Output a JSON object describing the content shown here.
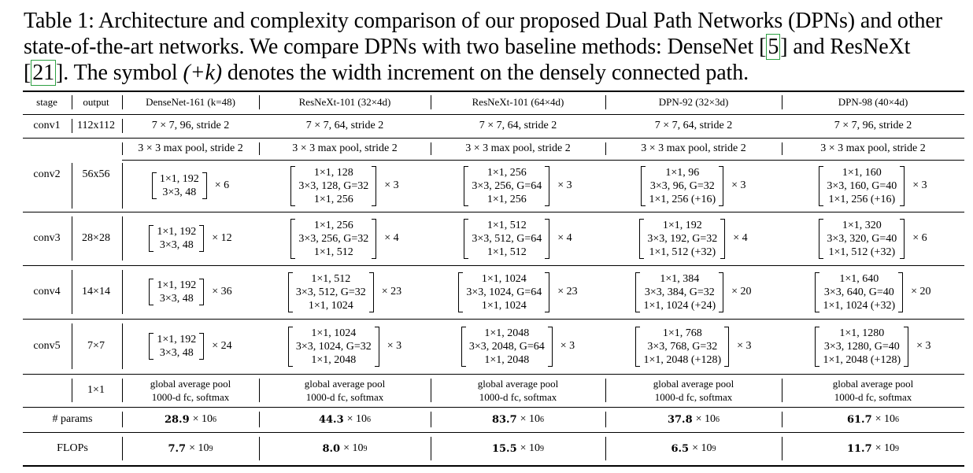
{
  "caption": {
    "part1": "Table 1: Architecture and complexity comparison of our proposed Dual Path Networks (DPNs) and other state-of-the-art networks. We compare DPNs with two baseline methods: DenseNet [",
    "ref1": "5",
    "part2": "] and ResNeXt [",
    "ref2": "21",
    "part3": "]. The symbol ",
    "symbol": "(+k)",
    "part4": " denotes the width increment on the densely connected path."
  },
  "header": {
    "stage": "stage",
    "output": "output",
    "models": [
      "DenseNet-161 (k=48)",
      "ResNeXt-101 (32×4d)",
      "ResNeXt-101 (64×4d)",
      "DPN-92 (32×3d)",
      "DPN-98 (40×4d)"
    ]
  },
  "conv1": {
    "stage": "conv1",
    "output": "112x112",
    "cells": [
      "7 × 7, 96, stride 2",
      "7 × 7, 64, stride 2",
      "7 × 7, 64, stride 2",
      "7 × 7, 64, stride 2",
      "7 × 7, 96, stride 2"
    ]
  },
  "conv2": {
    "stage": "conv2",
    "output": "56x56",
    "pool": [
      "3 × 3 max pool, stride 2",
      "3 × 3 max pool, stride 2",
      "3 × 3 max pool, stride 2",
      "3 × 3 max pool, stride 2",
      "3 × 3 max pool, stride 2"
    ],
    "blocks": [
      {
        "lines": [
          "1×1, 192",
          "3×3, 48"
        ],
        "mult": "× 6"
      },
      {
        "lines": [
          "1×1, 128",
          "3×3, 128, G=32",
          "1×1, 256"
        ],
        "mult": "× 3"
      },
      {
        "lines": [
          "1×1, 256",
          "3×3, 256, G=64",
          "1×1, 256"
        ],
        "mult": "× 3"
      },
      {
        "lines": [
          "1×1, 96",
          "3×3, 96, G=32",
          "1×1, 256 (+16)"
        ],
        "mult": "× 3"
      },
      {
        "lines": [
          "1×1, 160",
          "3×3, 160, G=40",
          "1×1, 256 (+16)"
        ],
        "mult": "× 3"
      }
    ]
  },
  "conv3": {
    "stage": "conv3",
    "output": "28×28",
    "blocks": [
      {
        "lines": [
          "1×1, 192",
          "3×3, 48"
        ],
        "mult": "× 12"
      },
      {
        "lines": [
          "1×1, 256",
          "3×3, 256, G=32",
          "1×1, 512"
        ],
        "mult": "× 4"
      },
      {
        "lines": [
          "1×1, 512",
          "3×3, 512, G=64",
          "1×1, 512"
        ],
        "mult": "× 4"
      },
      {
        "lines": [
          "1×1, 192",
          "3×3, 192, G=32",
          "1×1, 512 (+32)"
        ],
        "mult": "× 4"
      },
      {
        "lines": [
          "1×1, 320",
          "3×3, 320, G=40",
          "1×1, 512 (+32)"
        ],
        "mult": "× 6"
      }
    ]
  },
  "conv4": {
    "stage": "conv4",
    "output": "14×14",
    "blocks": [
      {
        "lines": [
          "1×1, 192",
          "3×3, 48"
        ],
        "mult": "× 36"
      },
      {
        "lines": [
          "1×1, 512",
          "3×3, 512, G=32",
          "1×1, 1024"
        ],
        "mult": "× 23"
      },
      {
        "lines": [
          "1×1, 1024",
          "3×3, 1024, G=64",
          "1×1, 1024"
        ],
        "mult": "× 23"
      },
      {
        "lines": [
          "1×1, 384",
          "3×3, 384, G=32",
          "1×1, 1024 (+24)"
        ],
        "mult": "× 20"
      },
      {
        "lines": [
          "1×1, 640",
          "3×3, 640, G=40",
          "1×1, 1024 (+32)"
        ],
        "mult": "× 20"
      }
    ]
  },
  "conv5": {
    "stage": "conv5",
    "output": "7×7",
    "blocks": [
      {
        "lines": [
          "1×1, 192",
          "3×3, 48"
        ],
        "mult": "× 24"
      },
      {
        "lines": [
          "1×1, 1024",
          "3×3, 1024, G=32",
          "1×1, 2048"
        ],
        "mult": "× 3"
      },
      {
        "lines": [
          "1×1, 2048",
          "3×3, 2048, G=64",
          "1×1, 2048"
        ],
        "mult": "× 3"
      },
      {
        "lines": [
          "1×1, 768",
          "3×3, 768, G=32",
          "1×1, 2048 (+128)"
        ],
        "mult": "× 3"
      },
      {
        "lines": [
          "1×1, 1280",
          "3×3, 1280, G=40",
          "1×1, 2048 (+128)"
        ],
        "mult": "× 3"
      }
    ]
  },
  "final": {
    "output": "1×1",
    "cells": [
      [
        "global average pool",
        "1000-d fc, softmax"
      ],
      [
        "global average pool",
        "1000-d fc, softmax"
      ],
      [
        "global average pool",
        "1000-d fc, softmax"
      ],
      [
        "global average pool",
        "1000-d fc, softmax"
      ],
      [
        "global average pool",
        "1000-d fc, softmax"
      ]
    ]
  },
  "params": {
    "label": "# params",
    "values": [
      {
        "mant": "28.9",
        "exp": "6"
      },
      {
        "mant": "44.3",
        "exp": "6"
      },
      {
        "mant": "83.7",
        "exp": "6"
      },
      {
        "mant": "37.8",
        "exp": "6"
      },
      {
        "mant": "61.7",
        "exp": "6"
      }
    ],
    "times": "× 10"
  },
  "flops": {
    "label": "FLOPs",
    "values": [
      {
        "mant": "7.7",
        "exp": "9"
      },
      {
        "mant": "8.0",
        "exp": "9"
      },
      {
        "mant": "15.5",
        "exp": "9"
      },
      {
        "mant": "6.5",
        "exp": "9"
      },
      {
        "mant": "11.7",
        "exp": "9"
      }
    ],
    "times": "× 10"
  }
}
